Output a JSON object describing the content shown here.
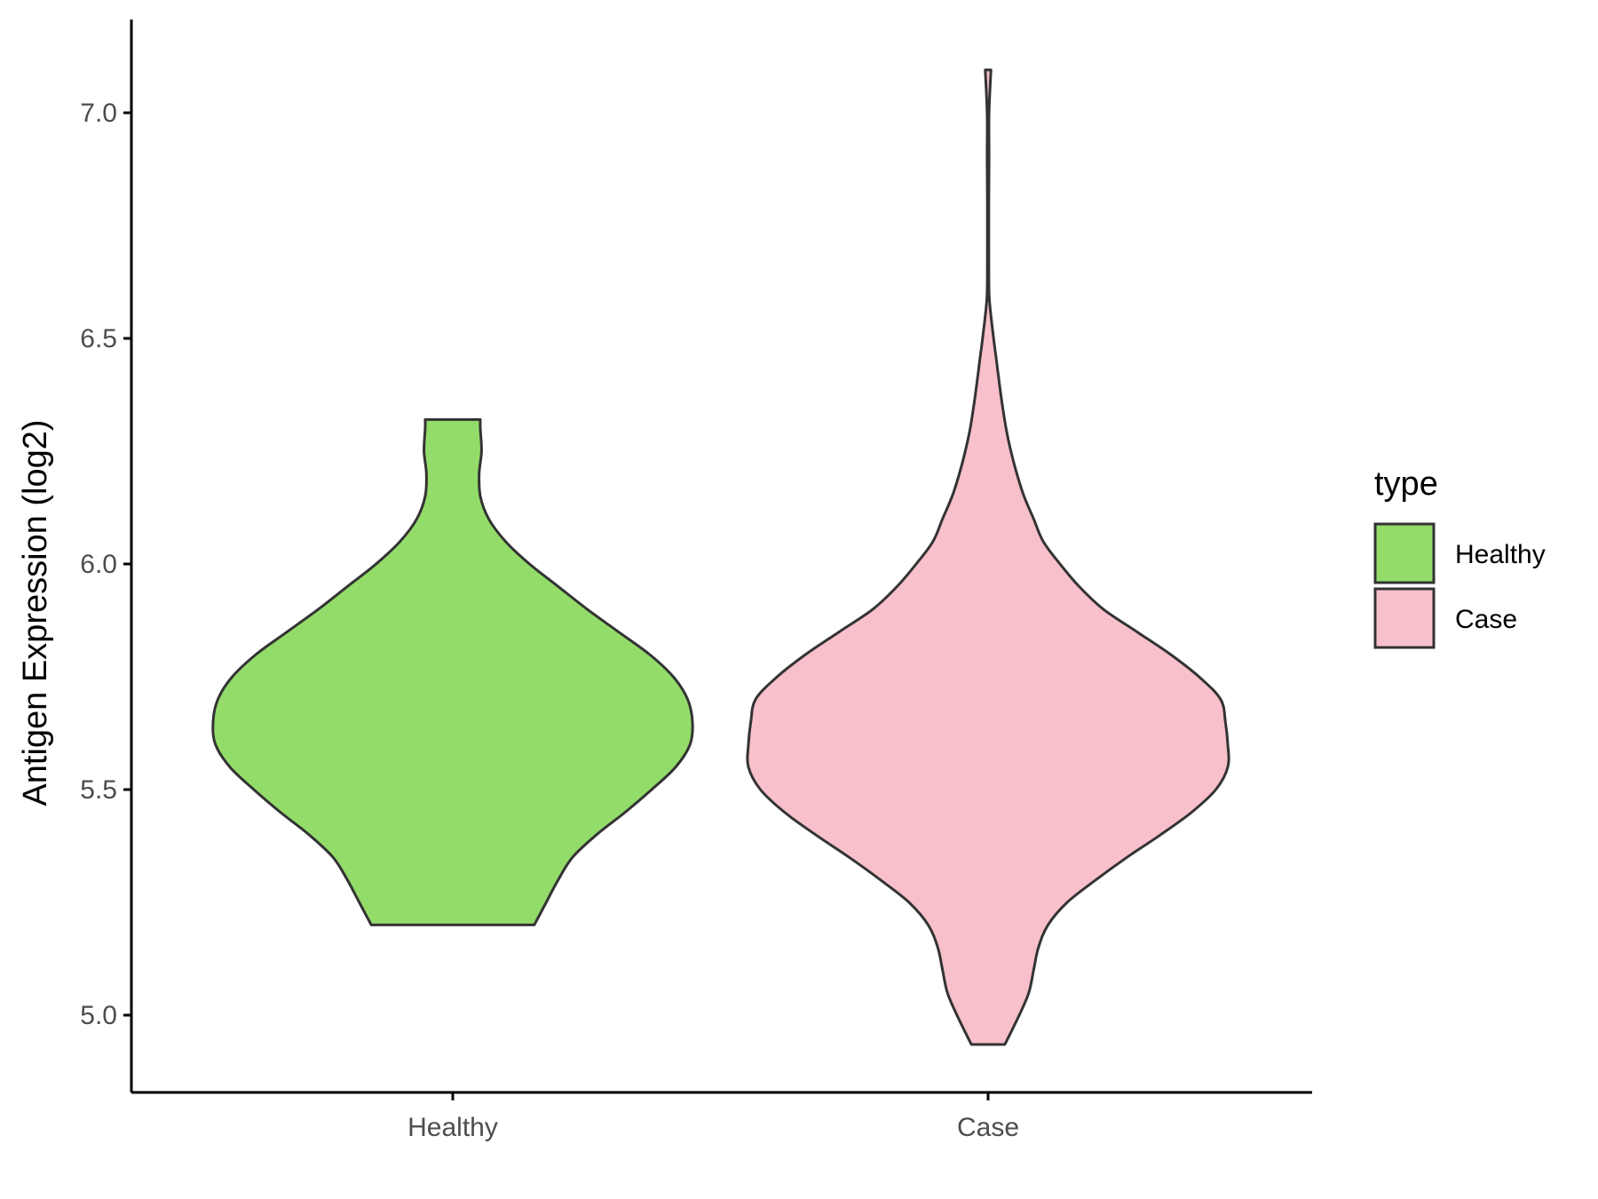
{
  "chart_data": {
    "type": "violin",
    "ylabel": "Antigen Expression (log2)",
    "xlabel": "",
    "ylim": [
      4.83,
      7.2
    ],
    "yticks": [
      5.0,
      5.5,
      6.0,
      6.5,
      7.0
    ],
    "ytick_labels": [
      "5.0",
      "5.5",
      "6.0",
      "6.5",
      "7.0"
    ],
    "categories": [
      "Healthy",
      "Case"
    ],
    "grid": false,
    "legend": {
      "title": "type",
      "position": "right",
      "entries": [
        {
          "label": "Healthy",
          "color": "#93dc6a"
        },
        {
          "label": "Case",
          "color": "#f8c0cb"
        }
      ]
    },
    "series": [
      {
        "name": "Healthy",
        "color": "#93dc6a",
        "min": 5.2,
        "max": 6.32,
        "density": [
          [
            5.2,
            0.34
          ],
          [
            5.25,
            0.39
          ],
          [
            5.3,
            0.44
          ],
          [
            5.35,
            0.5
          ],
          [
            5.4,
            0.6
          ],
          [
            5.45,
            0.72
          ],
          [
            5.5,
            0.83
          ],
          [
            5.55,
            0.93
          ],
          [
            5.6,
            0.99
          ],
          [
            5.65,
            1.0
          ],
          [
            5.7,
            0.98
          ],
          [
            5.75,
            0.92
          ],
          [
            5.8,
            0.82
          ],
          [
            5.85,
            0.69
          ],
          [
            5.9,
            0.56
          ],
          [
            5.95,
            0.44
          ],
          [
            6.0,
            0.32
          ],
          [
            6.05,
            0.22
          ],
          [
            6.1,
            0.15
          ],
          [
            6.15,
            0.115
          ],
          [
            6.2,
            0.11
          ],
          [
            6.25,
            0.12
          ],
          [
            6.3,
            0.115
          ],
          [
            6.32,
            0.115
          ]
        ]
      },
      {
        "name": "Case",
        "color": "#f8c0cb",
        "min": 4.935,
        "max": 7.095,
        "density": [
          [
            4.935,
            0.07
          ],
          [
            5.0,
            0.13
          ],
          [
            5.05,
            0.17
          ],
          [
            5.1,
            0.19
          ],
          [
            5.15,
            0.21
          ],
          [
            5.2,
            0.25
          ],
          [
            5.25,
            0.33
          ],
          [
            5.3,
            0.45
          ],
          [
            5.35,
            0.58
          ],
          [
            5.4,
            0.72
          ],
          [
            5.45,
            0.85
          ],
          [
            5.5,
            0.95
          ],
          [
            5.55,
            1.0
          ],
          [
            5.6,
            1.0
          ],
          [
            5.65,
            0.99
          ],
          [
            5.7,
            0.97
          ],
          [
            5.75,
            0.88
          ],
          [
            5.8,
            0.76
          ],
          [
            5.85,
            0.62
          ],
          [
            5.9,
            0.48
          ],
          [
            5.95,
            0.38
          ],
          [
            6.0,
            0.3
          ],
          [
            6.05,
            0.23
          ],
          [
            6.1,
            0.19
          ],
          [
            6.15,
            0.15
          ],
          [
            6.2,
            0.12
          ],
          [
            6.25,
            0.095
          ],
          [
            6.3,
            0.075
          ],
          [
            6.35,
            0.06
          ],
          [
            6.4,
            0.047
          ],
          [
            6.45,
            0.035
          ],
          [
            6.5,
            0.023
          ],
          [
            6.55,
            0.012
          ],
          [
            6.6,
            0.004
          ],
          [
            6.7,
            0.003
          ],
          [
            6.8,
            0.003
          ],
          [
            6.9,
            0.004
          ],
          [
            7.0,
            0.004
          ],
          [
            7.095,
            0.012
          ]
        ]
      }
    ]
  }
}
